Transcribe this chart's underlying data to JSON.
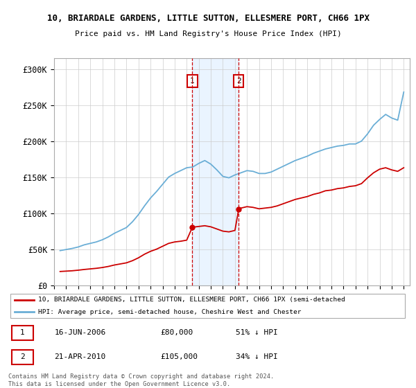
{
  "title1": "10, BRIARDALE GARDENS, LITTLE SUTTON, ELLESMERE PORT, CH66 1PX",
  "title2": "Price paid vs. HM Land Registry's House Price Index (HPI)",
  "ylabel_ticks": [
    "£0",
    "£50K",
    "£100K",
    "£150K",
    "£200K",
    "£250K",
    "£300K"
  ],
  "ytick_vals": [
    0,
    50000,
    100000,
    150000,
    200000,
    250000,
    300000
  ],
  "ylim": [
    0,
    315000
  ],
  "hpi_color": "#6aaed6",
  "price_color": "#cc0000",
  "sale1_x": 2006.458,
  "sale1_price": 80000,
  "sale2_x": 2010.308,
  "sale2_price": 105000,
  "legend_property": "10, BRIARDALE GARDENS, LITTLE SUTTON, ELLESMERE PORT, CH66 1PX (semi-detached",
  "legend_hpi": "HPI: Average price, semi-detached house, Cheshire West and Chester",
  "table_row1": [
    "1",
    "16-JUN-2006",
    "£80,000",
    "51% ↓ HPI"
  ],
  "table_row2": [
    "2",
    "21-APR-2010",
    "£105,000",
    "34% ↓ HPI"
  ],
  "footnote": "Contains HM Land Registry data © Crown copyright and database right 2024.\nThis data is licensed under the Open Government Licence v3.0.",
  "grid_color": "#cccccc",
  "shade_color": "#ddeeff",
  "xlim": [
    1995,
    2024.5
  ]
}
